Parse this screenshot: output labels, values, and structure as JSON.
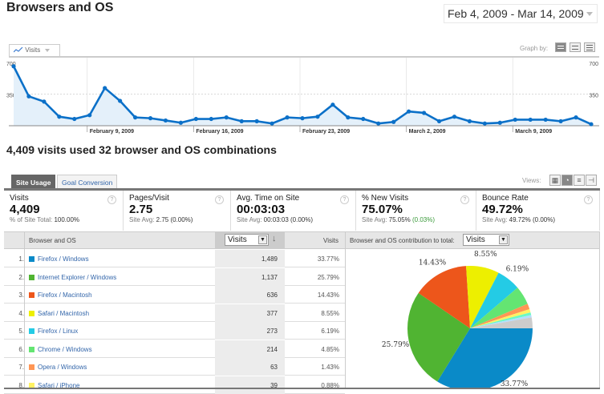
{
  "header": {
    "title": "Browsers and OS",
    "date_range": "Feb 4, 2009 - Mar 14, 2009"
  },
  "graph": {
    "metric_selector": "Visits",
    "graph_by_label": "Graph by:",
    "graph_by_options": [
      "day",
      "week",
      "month"
    ],
    "graph_by_selected": "day"
  },
  "chart_data": {
    "type": "area",
    "title": "Visits",
    "ylim": [
      0,
      700
    ],
    "yticks": [
      "700",
      "350"
    ],
    "y_tick_values": [
      700,
      350
    ],
    "xticks": [
      "February 9, 2009",
      "February 16, 2009",
      "February 23, 2009",
      "March 2, 2009",
      "March 9, 2009"
    ],
    "xtick_day_index": [
      5,
      12,
      19,
      26,
      33
    ],
    "x_start": "Feb 4, 2009",
    "x_end": "Mar 14, 2009",
    "series": [
      {
        "name": "Visits",
        "color": "#0b70c8",
        "values": [
          658,
          325,
          267,
          100,
          75,
          117,
          417,
          275,
          92,
          83,
          58,
          33,
          75,
          75,
          92,
          50,
          50,
          25,
          92,
          83,
          100,
          233,
          92,
          75,
          25,
          42,
          158,
          142,
          50,
          100,
          50,
          25,
          33,
          67,
          67,
          67,
          50,
          92,
          17
        ]
      }
    ],
    "grid": true
  },
  "summary": {
    "headline": "4,409 visits used 32 browser and OS combinations"
  },
  "tabs": [
    {
      "label": "Site Usage",
      "active": true
    },
    {
      "label": "Goal Conversion",
      "active": false
    }
  ],
  "views_label": "Views:",
  "views": [
    "table-view",
    "pie-view",
    "performance-view",
    "comparison-view"
  ],
  "metrics": [
    {
      "label": "Visits",
      "value": "4,409",
      "sub_prefix": "% of Site Total: ",
      "sub_value": "100.00%",
      "sub_delta": ""
    },
    {
      "label": "Pages/Visit",
      "value": "2.75",
      "sub_prefix": "Site Avg: ",
      "sub_value": "2.75 (0.00%)",
      "sub_delta": ""
    },
    {
      "label": "Avg. Time on Site",
      "value": "00:03:03",
      "sub_prefix": "Site Avg: ",
      "sub_value": "00:03:03 (0.00%)",
      "sub_delta": ""
    },
    {
      "label": "% New Visits",
      "value": "75.07%",
      "sub_prefix": "Site Avg: ",
      "sub_value": "75.05% ",
      "sub_delta": "(0.03%)"
    },
    {
      "label": "Bounce Rate",
      "value": "49.72%",
      "sub_prefix": "Site Avg: ",
      "sub_value": "49.72% (0.00%)",
      "sub_delta": ""
    }
  ],
  "help_glyph": "?",
  "table": {
    "col_dimension": "Browser and OS",
    "col_select": "Visits",
    "col_visits": "Visits",
    "contrib_label": "Browser and OS contribution to total:",
    "contrib_select": "Visits",
    "rows": [
      {
        "num": "1.",
        "name": "Firefox / Windows",
        "visits": "1,489",
        "pct": "33.77%",
        "color": "#0a8ac8"
      },
      {
        "num": "2.",
        "name": "Internet Explorer / Windows",
        "visits": "1,137",
        "pct": "25.79%",
        "color": "#50b432"
      },
      {
        "num": "3.",
        "name": "Firefox / Macintosh",
        "visits": "636",
        "pct": "14.43%",
        "color": "#ed561b"
      },
      {
        "num": "4.",
        "name": "Safari / Macintosh",
        "visits": "377",
        "pct": "8.55%",
        "color": "#edef00"
      },
      {
        "num": "5.",
        "name": "Firefox / Linux",
        "visits": "273",
        "pct": "6.19%",
        "color": "#24cbe5"
      },
      {
        "num": "6.",
        "name": "Chrome / Windows",
        "visits": "214",
        "pct": "4.85%",
        "color": "#64e572"
      },
      {
        "num": "7.",
        "name": "Opera / Windows",
        "visits": "63",
        "pct": "1.43%",
        "color": "#ff9655"
      },
      {
        "num": "8.",
        "name": "Safari / iPhone",
        "visits": "39",
        "pct": "0.88%",
        "color": "#fff263"
      }
    ]
  },
  "pie": {
    "labels_shown": [
      "33.77%",
      "25.79%",
      "14.43%",
      "8.55%",
      "6.19%"
    ],
    "extra_slices": [
      {
        "name": "other-small-1",
        "value": 0.7,
        "color": "#6af9c4"
      },
      {
        "name": "other-small-2",
        "value": 0.6,
        "color": "#b2deff"
      },
      {
        "name": "other",
        "value": 2.81,
        "color": "#cccccc"
      }
    ]
  }
}
